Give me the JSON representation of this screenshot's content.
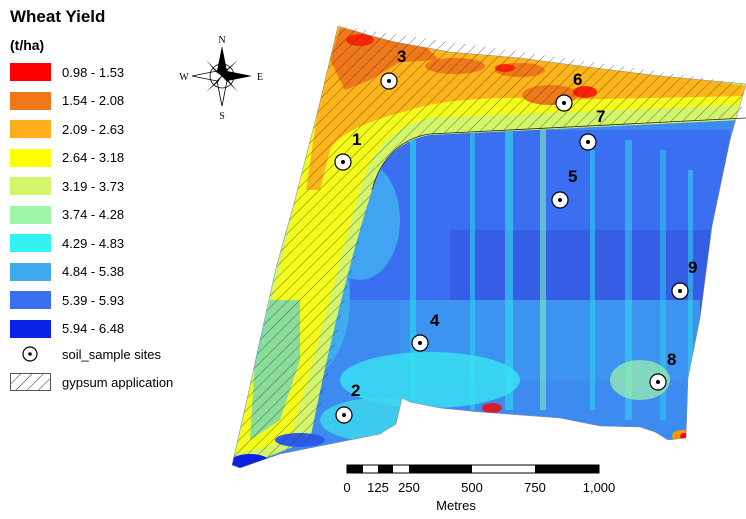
{
  "legend": {
    "title": "Wheat Yield",
    "units": "(t/ha)",
    "classes": [
      {
        "label": "0.98 - 1.53",
        "color": "#ff0000"
      },
      {
        "label": "1.54 - 2.08",
        "color": "#f07818"
      },
      {
        "label": "2.09 - 2.63",
        "color": "#ffad1a"
      },
      {
        "label": "2.64 - 3.18",
        "color": "#ffff00"
      },
      {
        "label": "3.19 - 3.73",
        "color": "#d2f56a"
      },
      {
        "label": "3.74 - 4.28",
        "color": "#9ff5a8"
      },
      {
        "label": "4.29 - 4.83",
        "color": "#33f2f2"
      },
      {
        "label": "4.84 - 5.38",
        "color": "#3da9f0"
      },
      {
        "label": "5.39 - 5.93",
        "color": "#3b6ff2"
      },
      {
        "label": "5.94 - 6.48",
        "color": "#0a22e6"
      }
    ],
    "symbols": {
      "sites_label": "soil_sample sites",
      "gypsum_label": "gypsum application"
    }
  },
  "compass": {
    "n": "N",
    "s": "S",
    "e": "E",
    "w": "W"
  },
  "sites": [
    {
      "label": "1"
    },
    {
      "label": "2"
    },
    {
      "label": "3"
    },
    {
      "label": "4"
    },
    {
      "label": "5"
    },
    {
      "label": "6"
    },
    {
      "label": "7"
    },
    {
      "label": "8"
    },
    {
      "label": "9"
    }
  ],
  "scalebar": {
    "ticks": [
      "0",
      "125",
      "250",
      "500",
      "750",
      "1,000"
    ],
    "unit": "Metres"
  }
}
